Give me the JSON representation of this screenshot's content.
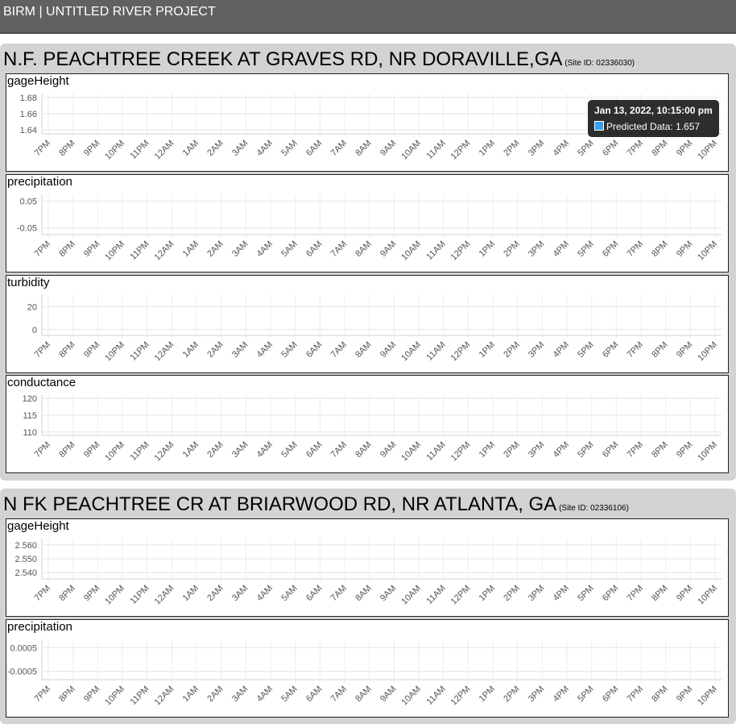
{
  "app": {
    "title": "BIRM | UNTITLED RIVER PROJECT"
  },
  "colors": {
    "observed": "#ff6384",
    "predicted": "#36a2eb"
  },
  "time_labels": [
    "7PM",
    "8PM",
    "9PM",
    "10PM",
    "11PM",
    "12AM",
    "1AM",
    "2AM",
    "3AM",
    "4AM",
    "5AM",
    "6AM",
    "7AM",
    "8AM",
    "9AM",
    "10AM",
    "11AM",
    "12PM",
    "1PM",
    "2PM",
    "3PM",
    "4PM",
    "5PM",
    "6PM",
    "7PM",
    "8PM",
    "9PM",
    "10PM"
  ],
  "tooltip": {
    "time": "Jan 13, 2022, 10:15:00 pm",
    "label": "Predicted Data: 1.657"
  },
  "sites": [
    {
      "name": "N.F. PEACHTREE CREEK AT GRAVES RD, NR DORAVILLE,GA",
      "site_id": "(Site ID: 02336030)",
      "charts": [
        {
          "title": "gageHeight",
          "yticks": [
            "1.68",
            "1.66",
            "1.64"
          ],
          "ytick_values": [
            1.68,
            1.66,
            1.64
          ],
          "ylim": [
            1.635,
            1.685
          ]
        },
        {
          "title": "precipitation",
          "yticks": [
            "0.05",
            "-0.05"
          ],
          "ytick_values": [
            0.05,
            -0.05
          ],
          "ylim": [
            -0.075,
            0.075
          ]
        },
        {
          "title": "turbidity",
          "yticks": [
            "20",
            "0"
          ],
          "ytick_values": [
            20,
            0
          ],
          "ylim": [
            -5,
            30
          ]
        },
        {
          "title": "conductance",
          "yticks": [
            "120",
            "115",
            "110"
          ],
          "ytick_values": [
            120,
            115,
            110
          ],
          "ylim": [
            109,
            121
          ]
        }
      ]
    },
    {
      "name": "N FK PEACHTREE CR AT BRIARWOOD RD, NR ATLANTA, GA",
      "site_id": "(Site ID: 02336106)",
      "charts": [
        {
          "title": "gageHeight",
          "yticks": [
            "2.560",
            "2.550",
            "2.540"
          ],
          "ytick_values": [
            2.56,
            2.55,
            2.54
          ],
          "ylim": [
            2.5355,
            2.5645
          ]
        },
        {
          "title": "precipitation",
          "yticks": [
            "0.0005",
            "-0.0005"
          ],
          "ytick_values": [
            0.0005,
            -0.0005
          ],
          "ylim": [
            -0.00085,
            0.00085
          ]
        }
      ]
    }
  ]
}
